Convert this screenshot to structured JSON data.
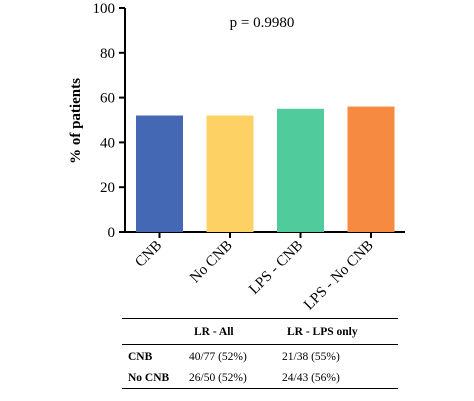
{
  "chart_data": {
    "type": "bar",
    "categories": [
      "CNB",
      "No CNB",
      "LPS - CNB",
      "LPS - No CNB"
    ],
    "values": [
      52,
      52,
      55,
      56
    ],
    "colors": [
      "#4468b4",
      "#fdd164",
      "#50cc9c",
      "#f68a40"
    ],
    "ylabel": "% of patients",
    "xlabel": "",
    "ylim": [
      0,
      100
    ],
    "yticks": [
      0,
      20,
      40,
      60,
      80,
      100
    ],
    "annotation": "p = 0.9980",
    "grid": false
  },
  "table": {
    "columns": [
      "",
      "LR - All",
      "LR - LPS only"
    ],
    "rows": [
      {
        "label": "CNB",
        "all": "40/77 (52%)",
        "lps": "21/38 (55%)"
      },
      {
        "label": "No CNB",
        "all": "26/50 (52%)",
        "lps": "24/43 (56%)"
      }
    ]
  }
}
